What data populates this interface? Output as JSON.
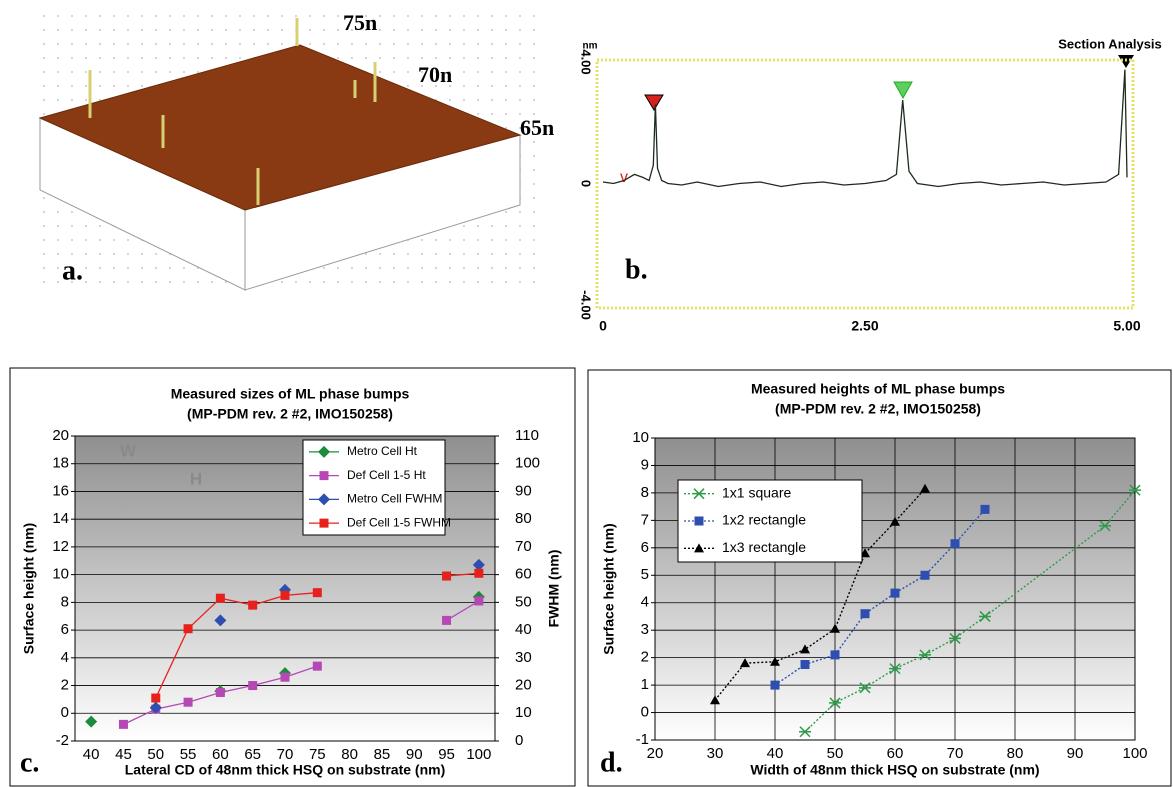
{
  "chart_data": [
    {
      "type": "surface",
      "panel_label": "a.",
      "annotations": [
        "75n",
        "70n",
        "65n"
      ]
    },
    {
      "type": "line",
      "title": "Section Analysis",
      "ylabel": "nm",
      "panel_label": "b.",
      "xlim": [
        0,
        5
      ],
      "xticks": [
        0,
        {
          "value": 2.5,
          "label": "2.50"
        },
        {
          "value": 5,
          "label": "5.00"
        }
      ],
      "ylim": [
        -4,
        4
      ],
      "yticks": [
        {
          "value": 4,
          "label": "4.00"
        },
        0,
        {
          "value": -4,
          "label": "-4.00"
        }
      ],
      "x": [
        0,
        0.1,
        0.2,
        0.3,
        0.38,
        0.44,
        0.48,
        0.5,
        0.52,
        0.56,
        0.62,
        0.75,
        0.9,
        1.1,
        1.3,
        1.5,
        1.7,
        1.9,
        2.1,
        2.3,
        2.5,
        2.7,
        2.8,
        2.86,
        2.92,
        3.0,
        3.2,
        3.4,
        3.6,
        3.8,
        4.0,
        4.2,
        4.4,
        4.6,
        4.8,
        4.92,
        4.98,
        5.0
      ],
      "series": [
        {
          "color": "#1d2b1d",
          "values": [
            0.05,
            0.0,
            0.1,
            0.3,
            0.2,
            0.1,
            0.6,
            2.6,
            0.5,
            0.1,
            0.0,
            -0.05,
            0.05,
            -0.1,
            0.0,
            0.05,
            -0.1,
            0.0,
            0.05,
            -0.05,
            0.0,
            0.1,
            0.3,
            2.75,
            0.4,
            0.0,
            -0.1,
            0.0,
            0.05,
            -0.05,
            0.0,
            0.05,
            -0.05,
            0.0,
            0.05,
            0.3,
            3.75,
            0.2
          ]
        }
      ]
    },
    {
      "type": "line",
      "title": "Measured sizes of ML phase bumps",
      "subtitle": "(MP-PDM rev. 2 #2, IMO150258)",
      "panel_label": "c.",
      "xlabel": "Lateral CD of 48nm thick HSQ on substrate (nm)",
      "ylabel": "Surface height (nm)",
      "y2label": "FWHM (nm)",
      "inset_labels": [
        "W",
        "H"
      ],
      "categories": [
        "40",
        "45",
        "50",
        "55",
        "60",
        "65",
        "70",
        "75",
        "80",
        "85",
        "90",
        "95",
        "100"
      ],
      "ylim": [
        -2,
        20
      ],
      "yticks": [
        -2,
        0,
        2,
        4,
        6,
        8,
        10,
        12,
        14,
        16,
        18,
        20
      ],
      "y2lim": [
        0,
        110
      ],
      "y2ticks": [
        0,
        10,
        20,
        30,
        40,
        50,
        60,
        70,
        80,
        90,
        100,
        110
      ],
      "grid": true,
      "legend": "upper right",
      "series": [
        {
          "name": "Metro Cell Ht",
          "color": "#1e8a3c",
          "marker": "diamond",
          "line": false,
          "values": [
            -0.6,
            null,
            0.4,
            null,
            1.6,
            null,
            2.9,
            null,
            null,
            null,
            null,
            null,
            8.4
          ]
        },
        {
          "name": "Def Cell 1-5 Ht",
          "color": "#b548b5",
          "marker": "square",
          "line": true,
          "values": [
            null,
            -0.8,
            0.3,
            0.8,
            1.5,
            2.0,
            2.6,
            3.4,
            null,
            null,
            null,
            6.7,
            8.1
          ]
        },
        {
          "name": "Metro Cell FWHM",
          "color": "#2e4fb0",
          "marker": "diamond",
          "line": false,
          "axis": "y2",
          "values": [
            null,
            null,
            12,
            null,
            43.5,
            null,
            54.5,
            null,
            null,
            null,
            null,
            null,
            63.5
          ]
        },
        {
          "name": "Def Cell 1-5 FWHM",
          "color": "#e8201c",
          "marker": "square",
          "line": true,
          "axis": "y2",
          "values": [
            null,
            null,
            15.5,
            40.5,
            51.5,
            49,
            52.5,
            53.5,
            null,
            null,
            null,
            59.5,
            60.5
          ]
        }
      ]
    },
    {
      "type": "line",
      "title": "Measured heights of ML phase bumps",
      "subtitle": "(MP-PDM rev. 2 #2, IMO150258)",
      "panel_label": "d.",
      "xlabel": "Width of 48nm thick HSQ on substrate (nm)",
      "ylabel": "Surface height (nm)",
      "xlim": [
        20,
        100
      ],
      "xticks": [
        20,
        30,
        40,
        50,
        60,
        70,
        80,
        90,
        100
      ],
      "ylim": [
        -1,
        10
      ],
      "yticks": [
        -1,
        0,
        1,
        2,
        3,
        4,
        5,
        6,
        7,
        8,
        9,
        10
      ],
      "grid": true,
      "legend": "upper left",
      "line_style": "dotted",
      "series": [
        {
          "name": "1x1 square",
          "color": "#2e9a4a",
          "marker": "star",
          "x": [
            45,
            50,
            55,
            60,
            65,
            70,
            75,
            95,
            100
          ],
          "values": [
            -0.7,
            0.35,
            0.9,
            1.6,
            2.1,
            2.7,
            3.5,
            6.8,
            8.1
          ]
        },
        {
          "name": "1x2 rectangle",
          "color": "#2e4fb0",
          "marker": "square",
          "x": [
            40,
            45,
            50,
            55,
            60,
            65,
            70,
            75
          ],
          "values": [
            1.0,
            1.75,
            2.1,
            3.6,
            4.35,
            5.0,
            6.15,
            7.4
          ]
        },
        {
          "name": "1x3 rectangle",
          "color": "#000000",
          "marker": "triangle",
          "x": [
            30,
            35,
            40,
            45,
            50,
            55,
            60,
            65
          ],
          "values": [
            0.45,
            1.8,
            1.85,
            2.3,
            3.05,
            5.8,
            6.95,
            8.15
          ]
        }
      ]
    }
  ]
}
